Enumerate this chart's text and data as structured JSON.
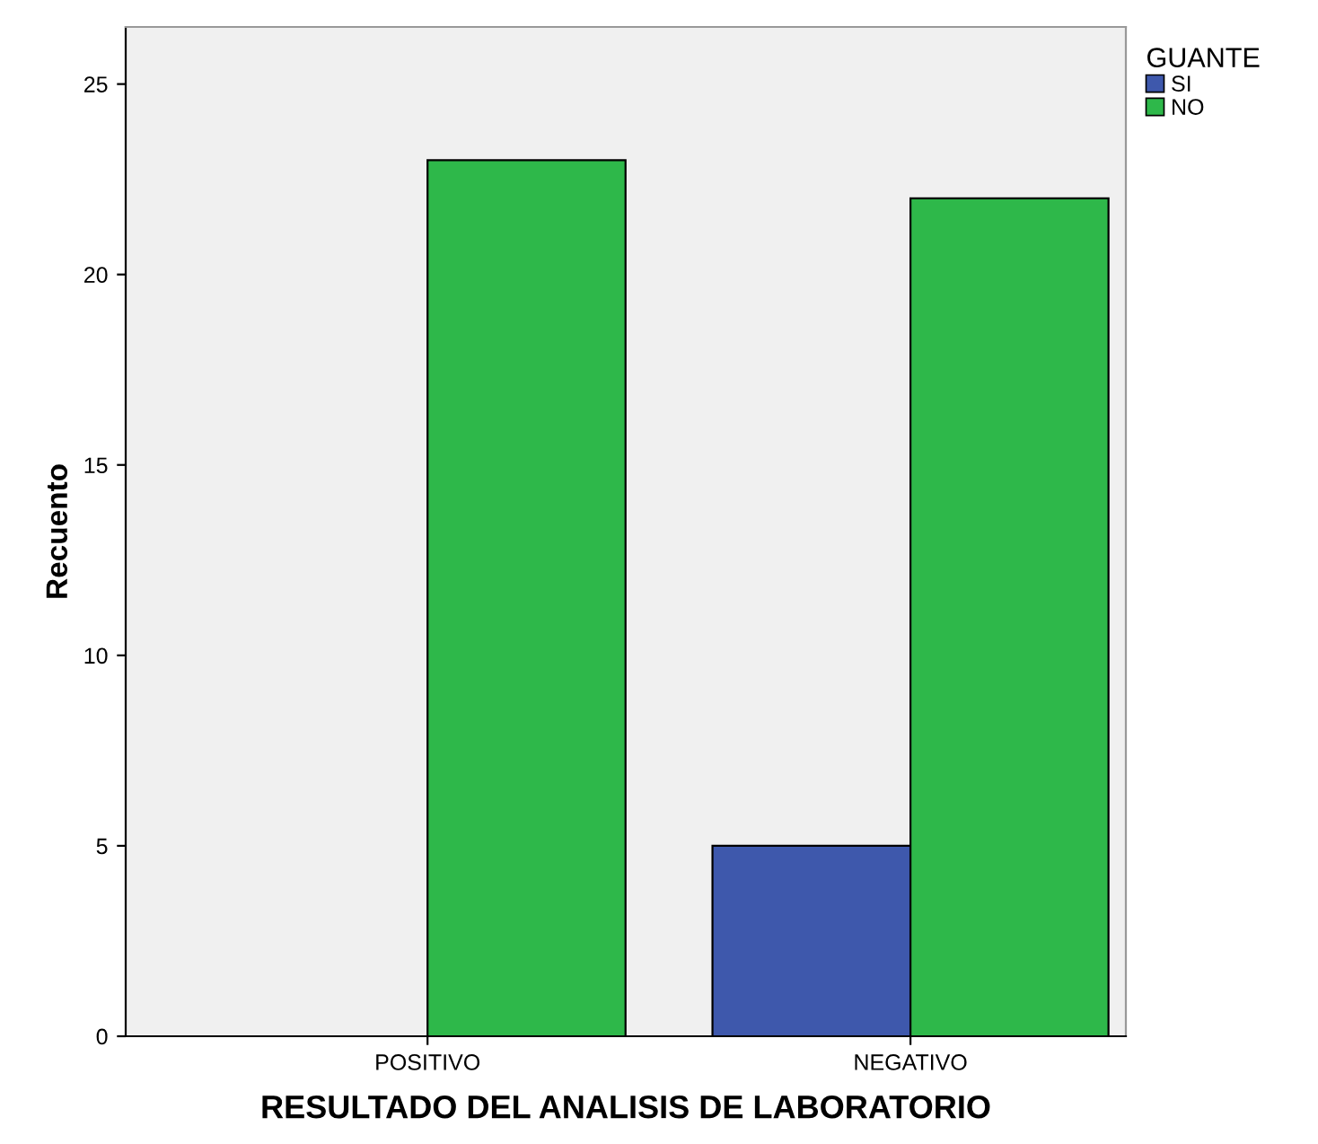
{
  "chart_data": {
    "type": "bar",
    "xlabel": "RESULTADO DEL ANALISIS DE LABORATORIO",
    "ylabel": "Recuento",
    "legend_title": "GUANTE",
    "categories": [
      "POSITIVO",
      "NEGATIVO"
    ],
    "series": [
      {
        "name": "SI",
        "color": "#3e58ac",
        "values": [
          0,
          5
        ]
      },
      {
        "name": "NO",
        "color": "#2eb84a",
        "values": [
          23,
          22
        ]
      }
    ],
    "ylim": [
      0,
      26.5
    ],
    "yticks": [
      0,
      5,
      10,
      15,
      20,
      25
    ],
    "grid": false,
    "legend": "top right"
  }
}
